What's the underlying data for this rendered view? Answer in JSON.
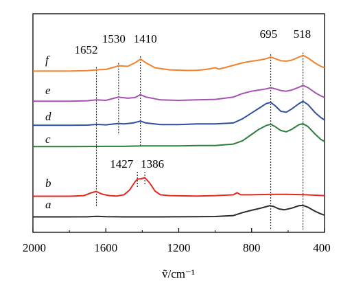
{
  "chart_data": {
    "type": "line",
    "title": "",
    "xlabel": "ṽ/cm⁻¹",
    "ylabel": "",
    "xlim": [
      2000,
      400
    ],
    "x_reversed": true,
    "xticks": [
      2000,
      1600,
      1200,
      800,
      400
    ],
    "xtick_labels": [
      "2000",
      "1600",
      "1200",
      "800",
      "400"
    ],
    "y_ticks_shown": false,
    "grid": false,
    "series": [
      {
        "name": "a",
        "color": "#2a2a2a",
        "offset": 0.0,
        "points": [
          [
            2000,
            0.02
          ],
          [
            1800,
            0.02
          ],
          [
            1700,
            0.025
          ],
          [
            1650,
            0.05
          ],
          [
            1600,
            0.03
          ],
          [
            1500,
            0.02
          ],
          [
            1400,
            0.02
          ],
          [
            1300,
            0.02
          ],
          [
            1200,
            0.025
          ],
          [
            1100,
            0.03
          ],
          [
            1000,
            0.04
          ],
          [
            900,
            0.1
          ],
          [
            850,
            0.28
          ],
          [
            800,
            0.42
          ],
          [
            750,
            0.55
          ],
          [
            700,
            0.7
          ],
          [
            680,
            0.65
          ],
          [
            650,
            0.5
          ],
          [
            620,
            0.45
          ],
          [
            580,
            0.55
          ],
          [
            540,
            0.7
          ],
          [
            520,
            0.72
          ],
          [
            490,
            0.6
          ],
          [
            450,
            0.35
          ],
          [
            420,
            0.2
          ],
          [
            400,
            0.12
          ]
        ]
      },
      {
        "name": "b",
        "color": "#e3271c",
        "offset": 0.0,
        "points": [
          [
            2000,
            0.05
          ],
          [
            1800,
            0.05
          ],
          [
            1720,
            0.08
          ],
          [
            1680,
            0.22
          ],
          [
            1652,
            0.28
          ],
          [
            1620,
            0.15
          ],
          [
            1580,
            0.08
          ],
          [
            1540,
            0.06
          ],
          [
            1500,
            0.12
          ],
          [
            1470,
            0.35
          ],
          [
            1440,
            0.75
          ],
          [
            1427,
            0.88
          ],
          [
            1405,
            0.9
          ],
          [
            1386,
            0.95
          ],
          [
            1360,
            0.7
          ],
          [
            1330,
            0.3
          ],
          [
            1300,
            0.12
          ],
          [
            1250,
            0.08
          ],
          [
            1100,
            0.06
          ],
          [
            1000,
            0.08
          ],
          [
            900,
            0.12
          ],
          [
            880,
            0.22
          ],
          [
            860,
            0.12
          ],
          [
            800,
            0.12
          ],
          [
            700,
            0.14
          ],
          [
            600,
            0.14
          ],
          [
            500,
            0.12
          ],
          [
            450,
            0.1
          ],
          [
            400,
            0.08
          ]
        ]
      },
      {
        "name": "c",
        "color": "#2e7d3c",
        "offset": 0.0,
        "points": [
          [
            2000,
            0.02
          ],
          [
            1800,
            0.02
          ],
          [
            1600,
            0.03
          ],
          [
            1500,
            0.03
          ],
          [
            1400,
            0.05
          ],
          [
            1300,
            0.05
          ],
          [
            1200,
            0.05
          ],
          [
            1100,
            0.06
          ],
          [
            1000,
            0.06
          ],
          [
            900,
            0.12
          ],
          [
            850,
            0.25
          ],
          [
            800,
            0.5
          ],
          [
            760,
            0.7
          ],
          [
            720,
            0.85
          ],
          [
            695,
            0.9
          ],
          [
            670,
            0.8
          ],
          [
            640,
            0.65
          ],
          [
            610,
            0.6
          ],
          [
            580,
            0.7
          ],
          [
            540,
            0.88
          ],
          [
            518,
            0.92
          ],
          [
            490,
            0.8
          ],
          [
            450,
            0.5
          ],
          [
            420,
            0.3
          ],
          [
            400,
            0.22
          ]
        ]
      },
      {
        "name": "d",
        "color": "#2d4fa3",
        "offset": 0.0,
        "points": [
          [
            2000,
            0.02
          ],
          [
            1800,
            0.02
          ],
          [
            1700,
            0.03
          ],
          [
            1650,
            0.06
          ],
          [
            1600,
            0.04
          ],
          [
            1530,
            0.1
          ],
          [
            1500,
            0.08
          ],
          [
            1450,
            0.12
          ],
          [
            1410,
            0.2
          ],
          [
            1380,
            0.12
          ],
          [
            1300,
            0.05
          ],
          [
            1200,
            0.05
          ],
          [
            1100,
            0.08
          ],
          [
            1000,
            0.08
          ],
          [
            900,
            0.12
          ],
          [
            850,
            0.3
          ],
          [
            800,
            0.55
          ],
          [
            760,
            0.75
          ],
          [
            720,
            0.95
          ],
          [
            695,
            1.0
          ],
          [
            670,
            0.85
          ],
          [
            640,
            0.62
          ],
          [
            610,
            0.58
          ],
          [
            580,
            0.72
          ],
          [
            540,
            0.95
          ],
          [
            518,
            1.05
          ],
          [
            490,
            0.9
          ],
          [
            450,
            0.55
          ],
          [
            420,
            0.35
          ],
          [
            400,
            0.25
          ]
        ]
      },
      {
        "name": "e",
        "color": "#a452b0",
        "offset": 0.0,
        "points": [
          [
            2000,
            0.02
          ],
          [
            1800,
            0.02
          ],
          [
            1700,
            0.04
          ],
          [
            1652,
            0.08
          ],
          [
            1600,
            0.06
          ],
          [
            1530,
            0.2
          ],
          [
            1480,
            0.15
          ],
          [
            1440,
            0.18
          ],
          [
            1410,
            0.3
          ],
          [
            1380,
            0.2
          ],
          [
            1300,
            0.08
          ],
          [
            1200,
            0.06
          ],
          [
            1100,
            0.08
          ],
          [
            1000,
            0.1
          ],
          [
            900,
            0.2
          ],
          [
            850,
            0.35
          ],
          [
            800,
            0.45
          ],
          [
            760,
            0.5
          ],
          [
            720,
            0.55
          ],
          [
            695,
            0.6
          ],
          [
            670,
            0.55
          ],
          [
            640,
            0.48
          ],
          [
            610,
            0.45
          ],
          [
            580,
            0.5
          ],
          [
            540,
            0.62
          ],
          [
            518,
            0.7
          ],
          [
            490,
            0.6
          ],
          [
            450,
            0.38
          ],
          [
            420,
            0.25
          ],
          [
            400,
            0.18
          ]
        ]
      },
      {
        "name": "f",
        "color": "#f0812d",
        "offset": 0.0,
        "points": [
          [
            2000,
            0.02
          ],
          [
            1800,
            0.02
          ],
          [
            1700,
            0.04
          ],
          [
            1652,
            0.08
          ],
          [
            1600,
            0.1
          ],
          [
            1550,
            0.22
          ],
          [
            1530,
            0.28
          ],
          [
            1480,
            0.25
          ],
          [
            1440,
            0.42
          ],
          [
            1410,
            0.6
          ],
          [
            1380,
            0.42
          ],
          [
            1330,
            0.18
          ],
          [
            1250,
            0.08
          ],
          [
            1150,
            0.05
          ],
          [
            1100,
            0.06
          ],
          [
            1050,
            0.1
          ],
          [
            1000,
            0.18
          ],
          [
            980,
            0.12
          ],
          [
            950,
            0.18
          ],
          [
            900,
            0.3
          ],
          [
            850,
            0.42
          ],
          [
            800,
            0.5
          ],
          [
            760,
            0.55
          ],
          [
            720,
            0.62
          ],
          [
            695,
            0.7
          ],
          [
            670,
            0.62
          ],
          [
            640,
            0.52
          ],
          [
            610,
            0.5
          ],
          [
            580,
            0.55
          ],
          [
            540,
            0.7
          ],
          [
            518,
            0.78
          ],
          [
            490,
            0.65
          ],
          [
            450,
            0.4
          ],
          [
            420,
            0.25
          ],
          [
            400,
            0.18
          ]
        ]
      }
    ],
    "annotations": [
      {
        "label": "1652",
        "x": 1652
      },
      {
        "label": "1530",
        "x": 1530
      },
      {
        "label": "1410",
        "x": 1410
      },
      {
        "label": "1427",
        "x": 1427
      },
      {
        "label": "1386",
        "x": 1386
      },
      {
        "label": "695",
        "x": 695
      },
      {
        "label": "518",
        "x": 518
      }
    ]
  }
}
